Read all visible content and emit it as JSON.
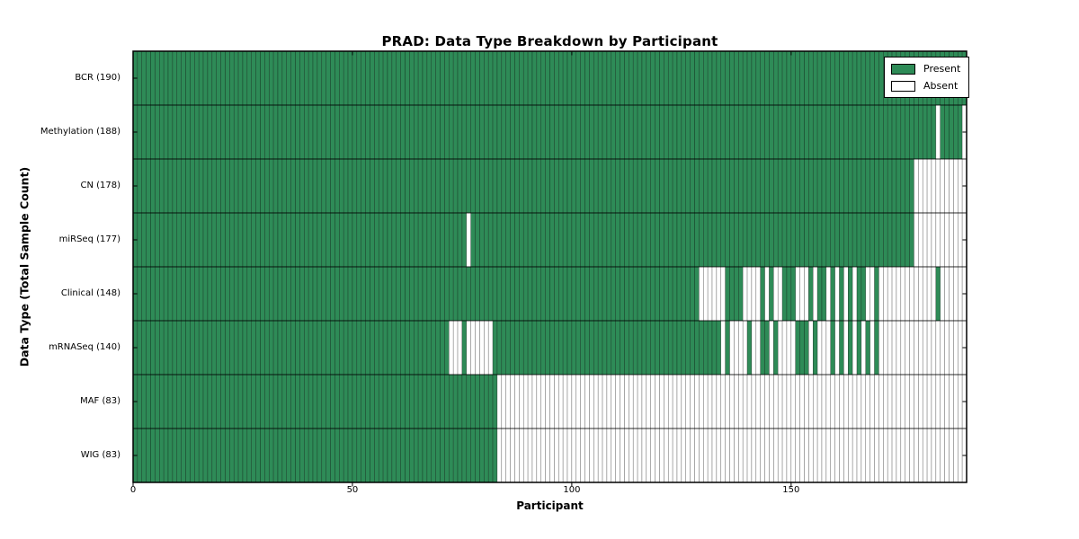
{
  "title": "PRAD: Data Type Breakdown by Participant",
  "axes": {
    "x_label": "Participant",
    "y_label": "Data Type (Total Sample Count)"
  },
  "legend": {
    "present_label": "Present",
    "absent_label": "Absent"
  },
  "colors": {
    "present": "#2e8b57",
    "absent": "#ffffff",
    "cell_edge": "rgba(0,0,0,0.5)",
    "row_divider": "#000000",
    "plot_border": "#000000"
  },
  "chart_data": {
    "type": "heatmap",
    "title": "PRAD: Data Type Breakdown by Participant",
    "xlabel": "Participant",
    "ylabel": "Data Type (Total Sample Count)",
    "legend": [
      "Present",
      "Absent"
    ],
    "legend_position": "upper right",
    "n_participants": 190,
    "x_ticks": [
      0,
      50,
      100,
      150
    ],
    "x_range": [
      0,
      190
    ],
    "cell_states": [
      "present",
      "absent"
    ],
    "rows": [
      {
        "data_type": "BCR",
        "label": "BCR (190)",
        "present_count": 190,
        "absent_ranges": []
      },
      {
        "data_type": "Methylation",
        "label": "Methylation (188)",
        "present_count": 188,
        "absent_ranges": [
          [
            183,
            183
          ],
          [
            189,
            189
          ]
        ]
      },
      {
        "data_type": "CN",
        "label": "CN (178)",
        "present_count": 178,
        "absent_ranges": [
          [
            178,
            189
          ]
        ]
      },
      {
        "data_type": "miRSeq",
        "label": "miRSeq (177)",
        "present_count": 177,
        "absent_ranges": [
          [
            76,
            76
          ],
          [
            178,
            189
          ]
        ]
      },
      {
        "data_type": "Clinical",
        "label": "Clinical (148)",
        "present_count": 148,
        "absent_ranges": [
          [
            129,
            134
          ],
          [
            139,
            142
          ],
          [
            144,
            144
          ],
          [
            146,
            147
          ],
          [
            151,
            153
          ],
          [
            155,
            155
          ],
          [
            158,
            158
          ],
          [
            160,
            160
          ],
          [
            162,
            162
          ],
          [
            164,
            164
          ],
          [
            167,
            168
          ],
          [
            170,
            182
          ],
          [
            184,
            189
          ]
        ]
      },
      {
        "data_type": "mRNASeq",
        "label": "mRNASeq (140)",
        "present_count": 140,
        "absent_ranges": [
          [
            72,
            74
          ],
          [
            76,
            81
          ],
          [
            134,
            134
          ],
          [
            136,
            139
          ],
          [
            141,
            142
          ],
          [
            145,
            145
          ],
          [
            147,
            150
          ],
          [
            154,
            154
          ],
          [
            156,
            158
          ],
          [
            160,
            160
          ],
          [
            162,
            162
          ],
          [
            164,
            164
          ],
          [
            166,
            166
          ],
          [
            168,
            168
          ],
          [
            170,
            189
          ]
        ]
      },
      {
        "data_type": "MAF",
        "label": "MAF (83)",
        "present_count": 83,
        "absent_ranges": [
          [
            83,
            189
          ]
        ]
      },
      {
        "data_type": "WIG",
        "label": "WIG (83)",
        "present_count": 83,
        "absent_ranges": [
          [
            83,
            189
          ]
        ]
      }
    ]
  }
}
